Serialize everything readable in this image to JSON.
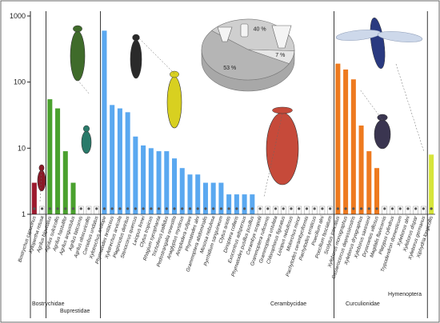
{
  "chart_data": {
    "type": "bar",
    "title": "",
    "xlabel": "",
    "ylabel": "",
    "yscale": "log",
    "ylim": [
      1,
      1000
    ],
    "y_ticks": [
      "1",
      "10",
      "100",
      "1000"
    ],
    "grid": false,
    "categories": [
      "Bostrychus capucinus",
      "Xylopertha retusa",
      "Agrilus biguttatus",
      "Agrilus sulcicollis",
      "Agrilus hastulifer",
      "Agrilus angustulus",
      "Agrilus laticornis",
      "Agrilus obscuricollis",
      "Coroebus undatus",
      "Xylotrechus antilope",
      "Phymatodes testaceus",
      "Xylotrechus arvicola",
      "Plagionotus detritus",
      "Stenocorus quercus",
      "Leiopus linnei",
      "Clytus tropicus",
      "Rhagium sycophanta",
      "Trichoferus pallidus",
      "Pedostrangalia revestita",
      "Anaglyptus mysticus",
      "Anoplodera rufipes",
      "Phymatodes alni",
      "Grammoptera abdominalis",
      "Mesosa nebulosa",
      "Pyrrhidium sanguineum",
      "Clytus arietis",
      "Dinoptera collaris",
      "Exocentrus adspersus",
      "Phymatodes pusillus pusillus",
      "Cerambyx scopolii",
      "Grammoptera ruficornis",
      "Grammoptera ustulata",
      "Chlorophorus figuratus",
      "Leiopus nebulosus",
      "Molorchus minor",
      "Pachytodes cerambyciformis",
      "Pachytodes erraticus",
      "Poecilium alni",
      "Poecilium fasciatum",
      "Scolytus intricatus",
      "Xyleborus monographus",
      "Gasterocercus depressirostris",
      "Xyleborus dryographus",
      "Xyleborus saxesenii",
      "Dryocoetes villosus",
      "Magdalis flavicornis",
      "Platypus cylindrus",
      "Trypodendron domesticum",
      "Xyleborus alni",
      "Xyleborus dispar",
      "Xyleborus germanus",
      "Xiphydria longicollis"
    ],
    "values": [
      3,
      1,
      55,
      40,
      9,
      3,
      1,
      1,
      1,
      600,
      45,
      40,
      35,
      15,
      11,
      10,
      9,
      9,
      7,
      5,
      4,
      4,
      3,
      3,
      3,
      2,
      2,
      2,
      2,
      1,
      1,
      1,
      1,
      1,
      1,
      1,
      1,
      1,
      1,
      190,
      155,
      110,
      22,
      9,
      5,
      1,
      1,
      1,
      1,
      1,
      1,
      8
    ],
    "colors": [
      "#9c1a2e",
      "#8a9a3b",
      "#4aa12e",
      "#1a8a2e",
      "#5dab3a",
      "#2e7d32",
      "#7ec850",
      "#f2c94c",
      "#f2a933",
      "#5aa8f0",
      "#ee7a1f",
      "#d6e53a"
    ],
    "families": [
      {
        "name": "Bostrychidae",
        "start": 0,
        "end": 1
      },
      {
        "name": "Buprestidae",
        "start": 2,
        "end": 8
      },
      {
        "name": "Cerambycidae",
        "start": 9,
        "end": 38
      },
      {
        "name": "Curculionidae",
        "start": 39,
        "end": 50
      },
      {
        "name": "Hymenoptera",
        "start": 51,
        "end": 51
      }
    ],
    "inset_pie": {
      "slices": [
        {
          "label": "40 %",
          "value": 40
        },
        {
          "label": "7 %",
          "value": 7
        },
        {
          "label": "53 %",
          "value": 53
        }
      ]
    }
  }
}
